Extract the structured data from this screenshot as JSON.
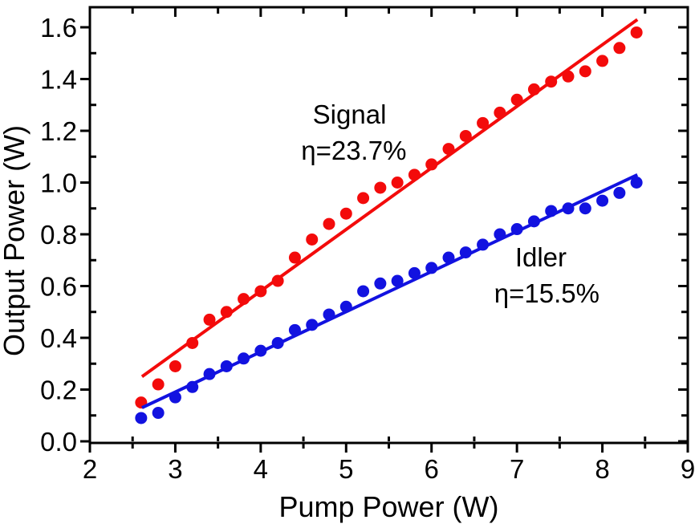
{
  "figure": {
    "background_color": "#ffffff",
    "frame_color": "#000000"
  },
  "chart_data": {
    "type": "scatter",
    "title": "",
    "xlabel": "Pump Power (W)",
    "ylabel": "Output Power (W)",
    "xlim": [
      2,
      9
    ],
    "ylim": [
      0,
      1.68
    ],
    "grid": false,
    "legend_position": "none",
    "x_major_ticks": [
      2,
      3,
      4,
      5,
      6,
      7,
      8,
      9
    ],
    "x_tick_labels": [
      "2",
      "3",
      "4",
      "5",
      "6",
      "7",
      "8",
      "9"
    ],
    "x_minor_step": 0.5,
    "y_major_ticks": [
      0.0,
      0.2,
      0.4,
      0.6,
      0.8,
      1.0,
      1.2,
      1.4,
      1.6
    ],
    "y_tick_labels": [
      "0.0",
      "0.2",
      "0.4",
      "0.6",
      "0.8",
      "1.0",
      "1.2",
      "1.4",
      "1.6"
    ],
    "y_minor_step": 0.1,
    "x": [
      2.6,
      2.8,
      3.0,
      3.2,
      3.4,
      3.6,
      3.8,
      4.0,
      4.2,
      4.4,
      4.6,
      4.8,
      5.0,
      5.2,
      5.4,
      5.6,
      5.8,
      6.0,
      6.2,
      6.4,
      6.6,
      6.8,
      7.0,
      7.2,
      7.4,
      7.6,
      7.8,
      8.0,
      8.2,
      8.4
    ],
    "series": [
      {
        "name": "Signal",
        "efficiency_label": "η=23.7%",
        "color": "#f30b0b",
        "marker": "circle",
        "marker_radius": 7.5,
        "values": [
          0.15,
          0.22,
          0.29,
          0.38,
          0.47,
          0.5,
          0.55,
          0.58,
          0.62,
          0.71,
          0.78,
          0.84,
          0.88,
          0.94,
          0.98,
          1.0,
          1.03,
          1.07,
          1.13,
          1.18,
          1.23,
          1.27,
          1.32,
          1.36,
          1.39,
          1.41,
          1.43,
          1.47,
          1.52,
          1.58
        ],
        "fit_line": {
          "x1": 2.61,
          "y1": 0.25,
          "x2": 8.41,
          "y2": 1.63,
          "slope": 0.237
        }
      },
      {
        "name": "Idler",
        "efficiency_label": "η=15.5%",
        "color": "#1212e0",
        "marker": "circle",
        "marker_radius": 7.5,
        "values": [
          0.09,
          0.11,
          0.17,
          0.21,
          0.26,
          0.29,
          0.32,
          0.35,
          0.38,
          0.43,
          0.45,
          0.49,
          0.52,
          0.58,
          0.61,
          0.62,
          0.65,
          0.67,
          0.71,
          0.73,
          0.76,
          0.8,
          0.82,
          0.85,
          0.89,
          0.9,
          0.9,
          0.93,
          0.96,
          1.0
        ],
        "fit_line": {
          "x1": 2.61,
          "y1": 0.13,
          "x2": 8.41,
          "y2": 1.03,
          "slope": 0.155
        }
      }
    ],
    "annotations": [
      {
        "text": "Signal",
        "x": 5.04,
        "y": 1.228,
        "color": "#000000"
      },
      {
        "text": "η=23.7%",
        "x": 5.09,
        "y": 1.088,
        "color": "#000000"
      },
      {
        "text": "Idler",
        "x": 7.28,
        "y": 0.676,
        "color": "#000000"
      },
      {
        "text": "η=15.5%",
        "x": 7.35,
        "y": 0.536,
        "color": "#000000"
      }
    ]
  }
}
